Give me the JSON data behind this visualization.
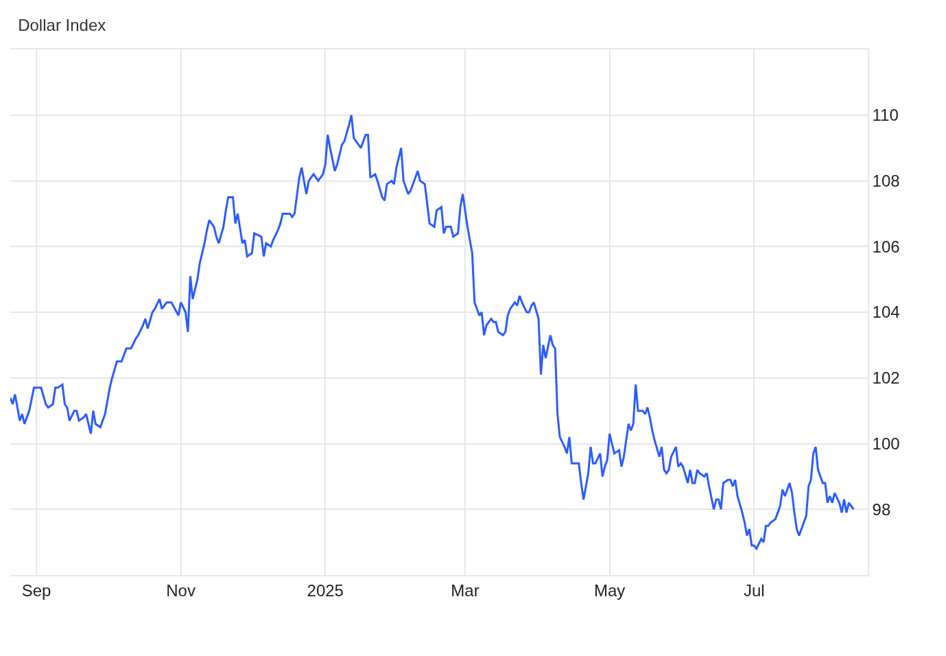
{
  "chart_data": {
    "type": "line",
    "title": "Dollar Index",
    "x": [
      "2024-08-21",
      "2024-08-22",
      "2024-08-23",
      "2024-08-25",
      "2024-08-26",
      "2024-08-27",
      "2024-08-29",
      "2024-08-31",
      "2024-09-03",
      "2024-09-05",
      "2024-09-06",
      "2024-09-08",
      "2024-09-09",
      "2024-09-10",
      "2024-09-12",
      "2024-09-13",
      "2024-09-14",
      "2024-09-15",
      "2024-09-17",
      "2024-09-18",
      "2024-09-19",
      "2024-09-21",
      "2024-09-22",
      "2024-09-24",
      "2024-09-25",
      "2024-09-26",
      "2024-09-28",
      "2024-09-30",
      "2024-10-01",
      "2024-10-02",
      "2024-10-03",
      "2024-10-05",
      "2024-10-07",
      "2024-10-09",
      "2024-10-11",
      "2024-10-13",
      "2024-10-14",
      "2024-10-16",
      "2024-10-17",
      "2024-10-18",
      "2024-10-20",
      "2024-10-21",
      "2024-10-23",
      "2024-10-24",
      "2024-10-26",
      "2024-10-28",
      "2024-10-31",
      "2024-11-01",
      "2024-11-03",
      "2024-11-04",
      "2024-11-05",
      "2024-11-06",
      "2024-11-08",
      "2024-11-09",
      "2024-11-11",
      "2024-11-12",
      "2024-11-13",
      "2024-11-15",
      "2024-11-16",
      "2024-11-17",
      "2024-11-19",
      "2024-11-20",
      "2024-11-21",
      "2024-11-23",
      "2024-11-24",
      "2024-11-25",
      "2024-11-27",
      "2024-11-28",
      "2024-11-29",
      "2024-12-01",
      "2024-12-02",
      "2024-12-05",
      "2024-12-06",
      "2024-12-07",
      "2024-12-09",
      "2024-12-10",
      "2024-12-12",
      "2024-12-13",
      "2024-12-14",
      "2024-12-15",
      "2024-12-17",
      "2024-12-18",
      "2024-12-19",
      "2024-12-21",
      "2024-12-22",
      "2024-12-24",
      "2024-12-25",
      "2024-12-27",
      "2024-12-28",
      "2024-12-29",
      "2024-12-31",
      "2025-01-01",
      "2025-01-02",
      "2025-01-03",
      "2025-01-05",
      "2025-01-06",
      "2025-01-08",
      "2025-01-09",
      "2025-01-11",
      "2025-01-12",
      "2025-01-13",
      "2025-01-15",
      "2025-01-16",
      "2025-01-18",
      "2025-01-19",
      "2025-01-20",
      "2025-01-22",
      "2025-01-23",
      "2025-01-25",
      "2025-01-26",
      "2025-01-27",
      "2025-01-29",
      "2025-01-30",
      "2025-01-31",
      "2025-02-02",
      "2025-02-03",
      "2025-02-05",
      "2025-02-06",
      "2025-02-08",
      "2025-02-09",
      "2025-02-10",
      "2025-02-12",
      "2025-02-13",
      "2025-02-14",
      "2025-02-16",
      "2025-02-17",
      "2025-02-19",
      "2025-02-20",
      "2025-02-21",
      "2025-02-23",
      "2025-02-24",
      "2025-02-26",
      "2025-02-27",
      "2025-02-28",
      "2025-03-02",
      "2025-03-04",
      "2025-03-05",
      "2025-03-06",
      "2025-03-07",
      "2025-03-08",
      "2025-03-09",
      "2025-03-10",
      "2025-03-12",
      "2025-03-13",
      "2025-03-14",
      "2025-03-15",
      "2025-03-17",
      "2025-03-18",
      "2025-03-19",
      "2025-03-20",
      "2025-03-22",
      "2025-03-23",
      "2025-03-24",
      "2025-03-25",
      "2025-03-27",
      "2025-03-28",
      "2025-03-29",
      "2025-03-30",
      "2025-04-01",
      "2025-04-02",
      "2025-04-03",
      "2025-04-04",
      "2025-04-06",
      "2025-04-07",
      "2025-04-08",
      "2025-04-09",
      "2025-04-10",
      "2025-04-12",
      "2025-04-13",
      "2025-04-14",
      "2025-04-15",
      "2025-04-17",
      "2025-04-18",
      "2025-04-19",
      "2025-04-20",
      "2025-04-22",
      "2025-04-23",
      "2025-04-24",
      "2025-04-25",
      "2025-04-27",
      "2025-04-28",
      "2025-04-29",
      "2025-04-30",
      "2025-05-01",
      "2025-05-02",
      "2025-05-03",
      "2025-05-05",
      "2025-05-06",
      "2025-05-07",
      "2025-05-09",
      "2025-05-10",
      "2025-05-11",
      "2025-05-12",
      "2025-05-13",
      "2025-05-15",
      "2025-05-16",
      "2025-05-17",
      "2025-05-18",
      "2025-05-19",
      "2025-05-20",
      "2025-05-22",
      "2025-05-23",
      "2025-05-24",
      "2025-05-25",
      "2025-05-26",
      "2025-05-27",
      "2025-05-29",
      "2025-05-30",
      "2025-05-31",
      "2025-06-01",
      "2025-06-03",
      "2025-06-04",
      "2025-06-05",
      "2025-06-06",
      "2025-06-07",
      "2025-06-08",
      "2025-06-10",
      "2025-06-11",
      "2025-06-12",
      "2025-06-14",
      "2025-06-15",
      "2025-06-16",
      "2025-06-17",
      "2025-06-18",
      "2025-06-20",
      "2025-06-21",
      "2025-06-22",
      "2025-06-23",
      "2025-06-24",
      "2025-06-26",
      "2025-06-27",
      "2025-06-28",
      "2025-06-29",
      "2025-06-30",
      "2025-07-01",
      "2025-07-02",
      "2025-07-04",
      "2025-07-05",
      "2025-07-06",
      "2025-07-07",
      "2025-07-08",
      "2025-07-10",
      "2025-07-11",
      "2025-07-12",
      "2025-07-13",
      "2025-07-14",
      "2025-07-16",
      "2025-07-17",
      "2025-07-18",
      "2025-07-19",
      "2025-07-20",
      "2025-07-21",
      "2025-07-23",
      "2025-07-24",
      "2025-07-25",
      "2025-07-26",
      "2025-07-27",
      "2025-07-28",
      "2025-07-30",
      "2025-07-31",
      "2025-08-01",
      "2025-08-02",
      "2025-08-03",
      "2025-08-04",
      "2025-08-06",
      "2025-08-07",
      "2025-08-08",
      "2025-08-09",
      "2025-08-10",
      "2025-08-12"
    ],
    "series": [
      {
        "color": "#2b5cff",
        "values": [
          101.4,
          101.2,
          101.5,
          100.7,
          100.9,
          100.6,
          101.0,
          101.7,
          101.7,
          101.2,
          101.1,
          101.2,
          101.7,
          101.7,
          101.8,
          101.2,
          101.1,
          100.7,
          101.0,
          101.0,
          100.7,
          100.8,
          100.9,
          100.3,
          101.0,
          100.6,
          100.5,
          100.9,
          101.3,
          101.7,
          102.0,
          102.5,
          102.5,
          102.9,
          102.9,
          103.2,
          103.3,
          103.6,
          103.8,
          103.5,
          104.0,
          104.1,
          104.4,
          104.1,
          104.3,
          104.3,
          103.9,
          104.3,
          104.0,
          103.4,
          105.1,
          104.4,
          105.0,
          105.5,
          106.1,
          106.5,
          106.8,
          106.6,
          106.3,
          106.1,
          106.6,
          107.1,
          107.5,
          107.5,
          106.7,
          107.0,
          106.1,
          106.2,
          105.7,
          105.8,
          106.4,
          106.3,
          105.7,
          106.1,
          106.0,
          106.2,
          106.5,
          106.7,
          107.0,
          107.0,
          107.0,
          106.9,
          107.0,
          108.1,
          108.4,
          107.6,
          108.0,
          108.2,
          108.1,
          108.0,
          108.2,
          108.5,
          109.4,
          109.0,
          108.3,
          108.5,
          109.1,
          109.2,
          109.7,
          110.0,
          109.3,
          109.1,
          109.0,
          109.4,
          109.4,
          108.1,
          108.2,
          108.0,
          107.5,
          107.4,
          107.9,
          108.0,
          107.9,
          108.4,
          109.0,
          108.0,
          107.6,
          107.7,
          108.1,
          108.3,
          108.0,
          107.9,
          107.3,
          106.7,
          106.6,
          107.1,
          107.2,
          106.4,
          106.6,
          106.6,
          106.3,
          106.4,
          107.2,
          107.6,
          106.6,
          105.8,
          104.3,
          104.1,
          103.9,
          104.0,
          103.3,
          103.6,
          103.8,
          103.7,
          103.7,
          103.4,
          103.3,
          103.4,
          103.9,
          104.1,
          104.3,
          104.2,
          104.5,
          104.3,
          104.0,
          104.0,
          104.2,
          104.3,
          103.8,
          102.1,
          103.0,
          102.6,
          103.3,
          103.0,
          102.9,
          100.9,
          100.2,
          99.9,
          99.7,
          100.2,
          99.4,
          99.4,
          99.4,
          98.8,
          98.3,
          99.1,
          99.9,
          99.4,
          99.4,
          99.7,
          99.0,
          99.3,
          99.5,
          100.3,
          100.0,
          99.7,
          99.8,
          99.3,
          99.6,
          100.6,
          100.4,
          100.6,
          101.8,
          101.0,
          101.0,
          100.9,
          101.1,
          100.8,
          100.4,
          100.1,
          99.6,
          99.9,
          99.2,
          99.1,
          99.2,
          99.6,
          99.9,
          99.3,
          99.4,
          99.3,
          98.8,
          99.2,
          98.8,
          98.8,
          99.2,
          99.1,
          99.0,
          99.1,
          98.7,
          98.0,
          98.3,
          98.3,
          98.0,
          98.8,
          98.9,
          98.9,
          98.7,
          98.9,
          98.4,
          97.9,
          97.6,
          97.2,
          97.4,
          96.9,
          96.9,
          96.8,
          97.1,
          97.0,
          97.5,
          97.5,
          97.6,
          97.7,
          97.9,
          98.1,
          98.6,
          98.4,
          98.8,
          98.5,
          97.9,
          97.4,
          97.2,
          97.4,
          97.8,
          98.7,
          98.9,
          99.7,
          99.9,
          99.2,
          98.8,
          98.8,
          98.2,
          98.4,
          98.2,
          98.5,
          98.2,
          97.9,
          98.3,
          97.9,
          98.2,
          98.0
        ]
      }
    ],
    "xlim": [
      "2024-08-21",
      "2025-08-18"
    ],
    "xticks": [
      {
        "value": "2024-09-01",
        "label": "Sep"
      },
      {
        "value": "2024-11-01",
        "label": "Nov"
      },
      {
        "value": "2025-01-01",
        "label": "2025"
      },
      {
        "value": "2025-03-01",
        "label": "Mar"
      },
      {
        "value": "2025-05-01",
        "label": "May"
      },
      {
        "value": "2025-07-01",
        "label": "Jul"
      }
    ],
    "ylim": [
      96,
      112
    ],
    "yticks": [
      98,
      100,
      102,
      104,
      106,
      108,
      110
    ],
    "grid": true,
    "marker": "none",
    "line_style": "solid"
  }
}
